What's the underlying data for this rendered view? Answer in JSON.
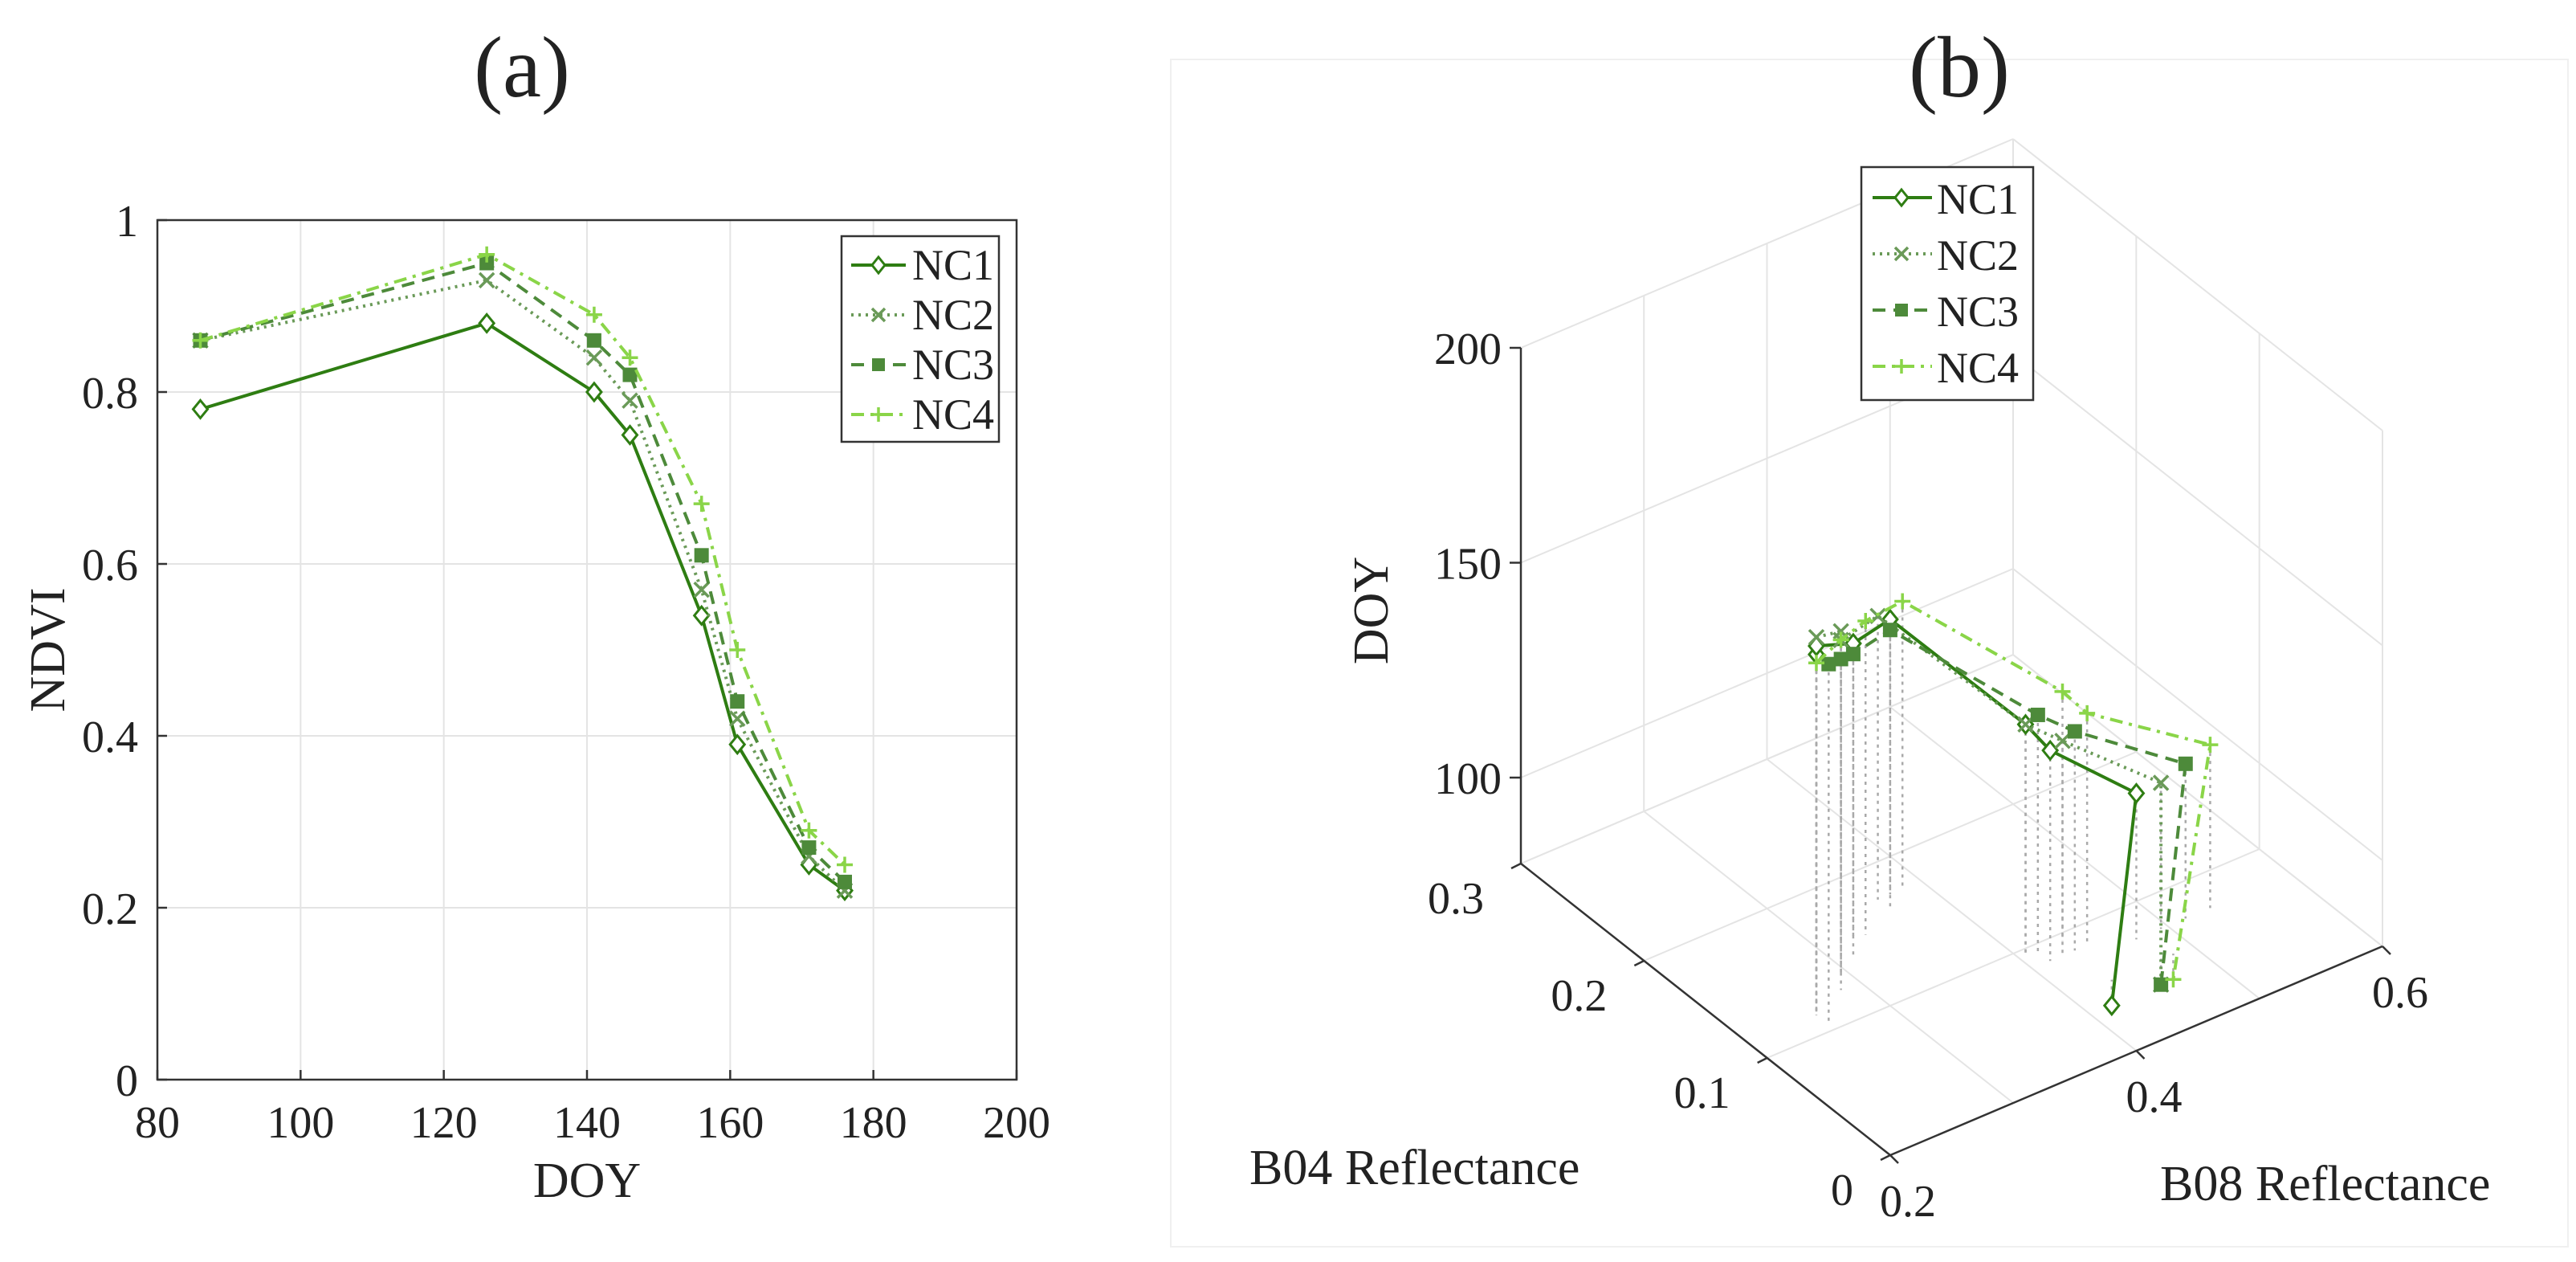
{
  "chart_data": [
    {
      "type": "line",
      "panel_label": "(a)",
      "xlabel": "DOY",
      "ylabel": "NDVI",
      "xlim": [
        80,
        200
      ],
      "ylim": [
        0,
        1
      ],
      "xticks": [
        80,
        100,
        120,
        140,
        160,
        180,
        200
      ],
      "yticks": [
        0,
        0.2,
        0.4,
        0.6,
        0.8,
        1
      ],
      "ytick_labels": [
        "0",
        "0.2",
        "0.4",
        "0.6",
        "0.8",
        "1"
      ],
      "grid": true,
      "legend_position": "top-right",
      "x": [
        86,
        126,
        141,
        146,
        156,
        161,
        171,
        176
      ],
      "series": [
        {
          "name": "NC1",
          "color": "#2e7d12",
          "style": "solid",
          "marker": "diamond",
          "values": [
            0.78,
            0.88,
            0.8,
            0.75,
            0.54,
            0.39,
            0.25,
            0.22
          ]
        },
        {
          "name": "NC2",
          "color": "#6a9a58",
          "style": "dotted",
          "marker": "x",
          "values": [
            0.86,
            0.93,
            0.84,
            0.79,
            0.57,
            0.42,
            0.26,
            0.22
          ]
        },
        {
          "name": "NC3",
          "color": "#4d8a3a",
          "style": "dashed",
          "marker": "square",
          "values": [
            0.86,
            0.95,
            0.86,
            0.82,
            0.61,
            0.44,
            0.27,
            0.23
          ]
        },
        {
          "name": "NC4",
          "color": "#8ad548",
          "style": "dashdot",
          "marker": "plus",
          "values": [
            0.86,
            0.96,
            0.89,
            0.84,
            0.67,
            0.5,
            0.29,
            0.25
          ]
        }
      ]
    },
    {
      "type": "line3d",
      "panel_label": "(b)",
      "xlabel": "B08 Reflectance",
      "ylabel": "B04 Reflectance",
      "zlabel": "DOY",
      "xticks": [
        0.2,
        0.4,
        0.6
      ],
      "yticks": [
        0,
        0.1,
        0.2,
        0.3
      ],
      "zticks": [
        100,
        150,
        200
      ],
      "xlim": [
        0.2,
        0.6
      ],
      "ylim": [
        0,
        0.3
      ],
      "zlim": [
        80,
        200
      ],
      "grid": true,
      "legend_position": "top-left",
      "series": [
        {
          "name": "NC1",
          "color": "#2e7d12",
          "style": "solid",
          "marker": "diamond",
          "points": [
            {
              "b08": 0.22,
              "b04": 0.08,
              "doy": 176
            },
            {
              "b08": 0.24,
              "b04": 0.1,
              "doy": 171
            },
            {
              "b08": 0.29,
              "b04": 0.12,
              "doy": 161
            },
            {
              "b08": 0.34,
              "b04": 0.14,
              "doy": 156
            },
            {
              "b08": 0.37,
              "b04": 0.06,
              "doy": 146
            },
            {
              "b08": 0.38,
              "b04": 0.05,
              "doy": 141
            },
            {
              "b08": 0.44,
              "b04": 0.04,
              "doy": 126
            },
            {
              "b08": 0.4,
              "b04": 0.02,
              "doy": 86
            }
          ]
        },
        {
          "name": "NC2",
          "color": "#6a9a58",
          "style": "dotted",
          "marker": "x",
          "points": [
            {
              "b08": 0.22,
              "b04": 0.08,
              "doy": 180
            },
            {
              "b08": 0.26,
              "b04": 0.1,
              "doy": 172
            },
            {
              "b08": 0.28,
              "b04": 0.12,
              "doy": 163
            },
            {
              "b08": 0.33,
              "b04": 0.14,
              "doy": 158
            },
            {
              "b08": 0.37,
              "b04": 0.06,
              "doy": 146
            },
            {
              "b08": 0.39,
              "b04": 0.05,
              "doy": 142
            },
            {
              "b08": 0.46,
              "b04": 0.04,
              "doy": 126
            },
            {
              "b08": 0.44,
              "b04": 0.02,
              "doy": 86
            }
          ]
        },
        {
          "name": "NC3",
          "color": "#4d8a3a",
          "style": "dashed",
          "marker": "square",
          "points": [
            {
              "b08": 0.22,
              "b04": 0.07,
              "doy": 176
            },
            {
              "b08": 0.25,
              "b04": 0.09,
              "doy": 169
            },
            {
              "b08": 0.28,
              "b04": 0.11,
              "doy": 162
            },
            {
              "b08": 0.33,
              "b04": 0.13,
              "doy": 157
            },
            {
              "b08": 0.38,
              "b04": 0.06,
              "doy": 147
            },
            {
              "b08": 0.4,
              "b04": 0.05,
              "doy": 143
            },
            {
              "b08": 0.48,
              "b04": 0.04,
              "doy": 128
            },
            {
              "b08": 0.44,
              "b04": 0.02,
              "doy": 86
            }
          ]
        },
        {
          "name": "NC4",
          "color": "#8ad548",
          "style": "dashdot",
          "marker": "plus",
          "points": [
            {
              "b08": 0.22,
              "b04": 0.08,
              "doy": 174
            },
            {
              "b08": 0.26,
              "b04": 0.1,
              "doy": 170
            },
            {
              "b08": 0.3,
              "b04": 0.12,
              "doy": 165
            },
            {
              "b08": 0.35,
              "b04": 0.14,
              "doy": 159
            },
            {
              "b08": 0.4,
              "b04": 0.06,
              "doy": 150
            },
            {
              "b08": 0.41,
              "b04": 0.05,
              "doy": 146
            },
            {
              "b08": 0.5,
              "b04": 0.04,
              "doy": 130
            },
            {
              "b08": 0.45,
              "b04": 0.02,
              "doy": 86
            }
          ]
        }
      ]
    }
  ]
}
